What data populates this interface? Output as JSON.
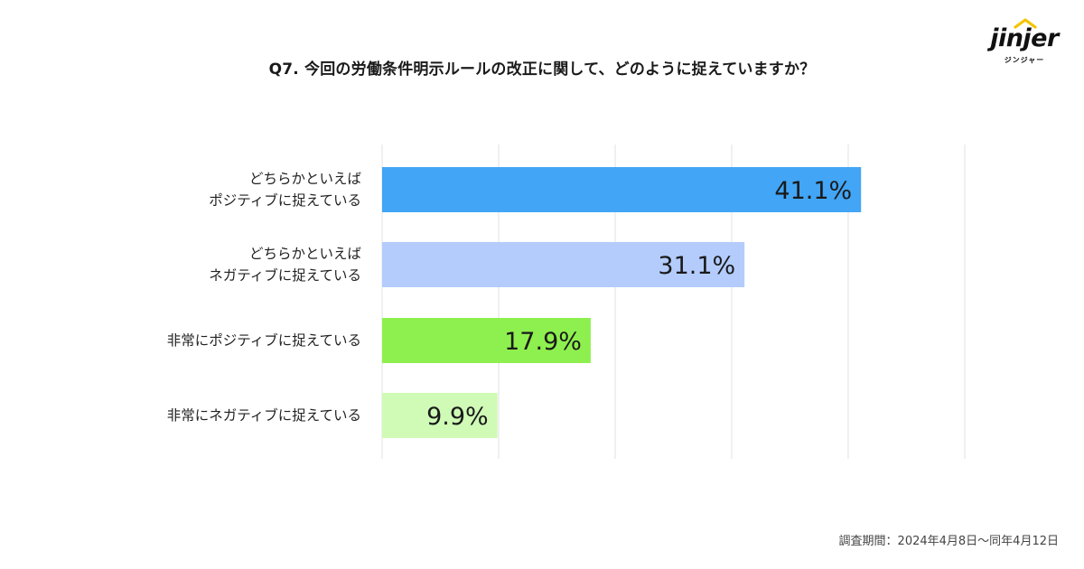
{
  "title": "Q7. 今回の労働条件明示ルールの改正に関して、どのように捉えていますか？",
  "logo": {
    "word": "jinjer",
    "sub": "ジンジャー",
    "accent_color": "#f5c400"
  },
  "footnote": "調査期間：2024年4月8日〜同年4月12日",
  "chart_data": {
    "type": "bar",
    "orientation": "horizontal",
    "title": "Q7. 今回の労働条件明示ルールの改正に関して、どのように捉えていますか？",
    "categories": [
      "どちらかといえば\nポジティブに捉えている",
      "どちらかといえば\nネガティブに捉えている",
      "非常にポジティブに捉えている",
      "非常にネガティブに捉えている"
    ],
    "values": [
      41.1,
      31.1,
      17.9,
      9.9
    ],
    "value_labels": [
      "41.1%",
      "31.1%",
      "17.9%",
      "9.9%"
    ],
    "colors": [
      "#42a5f5",
      "#b3ccfc",
      "#8ef04e",
      "#cffbb6"
    ],
    "xlim": [
      0,
      50
    ],
    "grid": true,
    "xlabel": "",
    "ylabel": ""
  }
}
